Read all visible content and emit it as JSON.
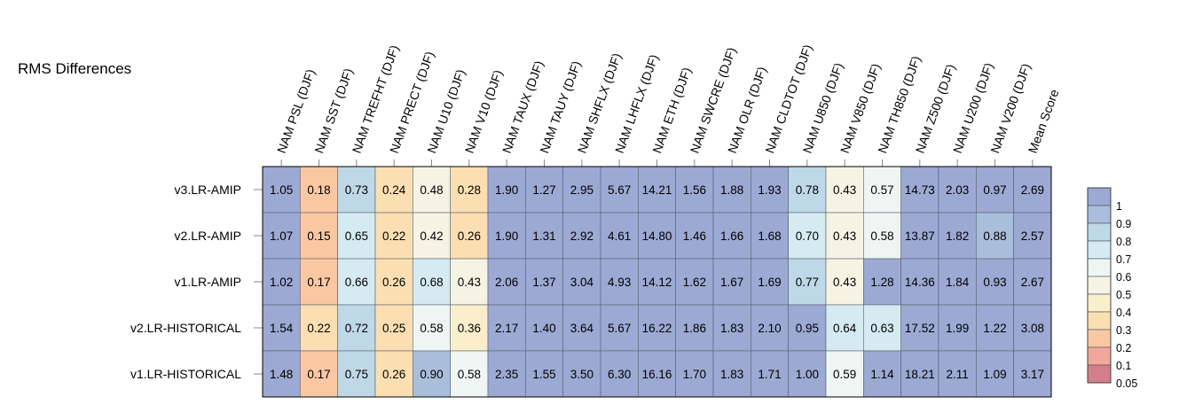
{
  "chart_data": {
    "type": "heatmap",
    "title": "RMS Differences",
    "columns": [
      "NAM PSL (DJF)",
      "NAM SST (DJF)",
      "NAM TREFHT (DJF)",
      "NAM PRECT (DJF)",
      "NAM U10 (DJF)",
      "NAM V10 (DJF)",
      "NAM TAUX (DJF)",
      "NAM TAUY (DJF)",
      "NAM SHFLX (DJF)",
      "NAM LHFLX (DJF)",
      "NAM ETH (DJF)",
      "NAM SWCRE (DJF)",
      "NAM OLR (DJF)",
      "NAM CLDTOT (DJF)",
      "NAM U850 (DJF)",
      "NAM V850 (DJF)",
      "NAM TH850 (DJF)",
      "NAM Z500 (DJF)",
      "NAM U200 (DJF)",
      "NAM V200 (DJF)",
      "Mean Score"
    ],
    "rows": [
      "v3.LR-AMIP",
      "v2.LR-AMIP",
      "v1.LR-AMIP",
      "v2.LR-HISTORICAL",
      "v1.LR-HISTORICAL"
    ],
    "values": [
      [
        "1.05",
        "0.18",
        "0.73",
        "0.24",
        "0.48",
        "0.28",
        "1.90",
        "1.27",
        "2.95",
        "5.67",
        "14.21",
        "1.56",
        "1.88",
        "1.93",
        "0.78",
        "0.43",
        "0.57",
        "14.73",
        "2.03",
        "0.97",
        "2.69"
      ],
      [
        "1.07",
        "0.15",
        "0.65",
        "0.22",
        "0.42",
        "0.26",
        "1.90",
        "1.31",
        "2.92",
        "4.61",
        "14.80",
        "1.46",
        "1.66",
        "1.68",
        "0.70",
        "0.43",
        "0.58",
        "13.87",
        "1.82",
        "0.88",
        "2.57"
      ],
      [
        "1.02",
        "0.17",
        "0.66",
        "0.26",
        "0.68",
        "0.43",
        "2.06",
        "1.37",
        "3.04",
        "4.93",
        "14.12",
        "1.62",
        "1.67",
        "1.69",
        "0.77",
        "0.43",
        "1.28",
        "14.36",
        "1.84",
        "0.93",
        "2.67"
      ],
      [
        "1.54",
        "0.22",
        "0.72",
        "0.25",
        "0.58",
        "0.36",
        "2.17",
        "1.40",
        "3.64",
        "5.67",
        "16.22",
        "1.86",
        "1.83",
        "2.10",
        "0.95",
        "0.64",
        "0.63",
        "17.52",
        "1.99",
        "1.22",
        "3.08"
      ],
      [
        "1.48",
        "0.17",
        "0.75",
        "0.26",
        "0.90",
        "0.58",
        "2.35",
        "1.55",
        "3.50",
        "6.30",
        "16.16",
        "1.70",
        "1.83",
        "1.71",
        "1.00",
        "0.59",
        "1.14",
        "18.21",
        "2.11",
        "1.09",
        "3.17"
      ]
    ],
    "colorbar": {
      "ticks": [
        "1",
        "0.9",
        "0.8",
        "0.7",
        "0.6",
        "0.5",
        "0.4",
        "0.3",
        "0.2",
        "0.1",
        "0.05"
      ],
      "colors": [
        "#9ba9d3",
        "#a9bedb",
        "#bed8e8",
        "#d6ebf1",
        "#eef6f4",
        "#f6f3e4",
        "#fbeecb",
        "#fbdfb2",
        "#f9c8a2",
        "#f1a79a",
        "#d57e8b"
      ]
    }
  }
}
